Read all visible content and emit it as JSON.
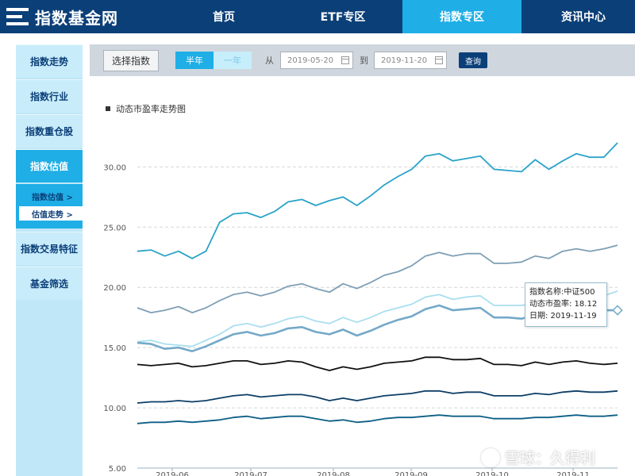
{
  "site": {
    "logo_text": "指数基金网"
  },
  "nav": [
    {
      "label": "首页",
      "active": false
    },
    {
      "label": "ETF专区",
      "active": false
    },
    {
      "label": "指数专区",
      "active": true
    },
    {
      "label": "资讯中心",
      "active": false
    }
  ],
  "sidebar": {
    "items": [
      {
        "label": "指数走势"
      },
      {
        "label": "指数行业"
      },
      {
        "label": "指数重仓股"
      },
      {
        "label": "指数估值"
      }
    ],
    "sub_items": [
      {
        "label": "指数估值 >"
      },
      {
        "label": "估值走势 >"
      }
    ],
    "items_after": [
      {
        "label": "指数交易特征"
      },
      {
        "label": "基金筛选"
      }
    ]
  },
  "filter": {
    "select_index_label": "选择指数",
    "range_options": [
      "半年",
      "一年"
    ],
    "active_range": "半年",
    "from_label": "从",
    "from_date": "2019-05-20",
    "to_label": "到",
    "to_date": "2019-11-20",
    "query_label": "查询"
  },
  "chart_title": "动态市盈率走势图",
  "tooltip": {
    "name": "指数名称:中证500",
    "pe": "动态市盈率: 18.12",
    "date": "日期: 2019-11-19"
  },
  "watermark": "雪球：久得利",
  "colors": {
    "nav_bg": "#0b3f78",
    "accent": "#1faee6",
    "series": [
      "#2aa3c8",
      "#7f9fb5",
      "#a9def0",
      "#74a9c8",
      "#111111",
      "#0d3e66",
      "#0d5f86"
    ]
  },
  "chart_data": {
    "type": "line",
    "title": "动态市盈率走势图",
    "x_start": "2019-05-20",
    "x_end": "2019-11-19",
    "x_tick_labels": [
      "2019-06",
      "2019-07",
      "2019-08",
      "2019-09",
      "2019-10",
      "2019-11"
    ],
    "y_tick_labels": [
      "5.00",
      "10.00",
      "15.00",
      "20.00",
      "25.00",
      "30.00"
    ],
    "ylim": [
      5,
      32
    ],
    "grid": true,
    "series": [
      {
        "values": [
          23.0,
          23.1,
          22.6,
          23.0,
          22.4,
          23.0,
          25.4,
          26.1,
          26.2,
          25.8,
          26.3,
          27.1,
          27.3,
          26.8,
          27.2,
          27.5,
          26.8,
          27.6,
          28.5,
          29.2,
          29.8,
          30.9,
          31.1,
          30.5,
          30.7,
          30.9,
          29.8,
          29.7,
          29.6,
          30.6,
          29.8,
          30.5,
          31.1,
          30.8,
          30.8,
          32.0
        ]
      },
      {
        "values": [
          18.3,
          17.9,
          18.1,
          18.4,
          17.9,
          18.3,
          18.9,
          19.4,
          19.6,
          19.3,
          19.6,
          20.1,
          20.3,
          19.9,
          19.6,
          20.3,
          19.9,
          20.4,
          21.0,
          21.3,
          21.8,
          22.6,
          22.9,
          22.6,
          22.8,
          22.8,
          22.0,
          22.0,
          22.1,
          22.6,
          22.4,
          23.0,
          23.2,
          23.0,
          23.2,
          23.5
        ]
      },
      {
        "values": [
          15.5,
          15.6,
          15.3,
          15.2,
          15.1,
          15.6,
          16.1,
          16.8,
          17.0,
          16.7,
          17.0,
          17.4,
          17.6,
          17.2,
          17.0,
          17.5,
          17.1,
          17.5,
          18.0,
          18.3,
          18.6,
          19.2,
          19.4,
          19.0,
          19.2,
          19.3,
          18.5,
          18.5,
          18.5,
          18.7,
          18.6,
          19.0,
          19.2,
          19.0,
          19.3,
          19.7
        ]
      },
      {
        "values": [
          15.4,
          15.3,
          14.9,
          15.0,
          14.7,
          15.1,
          15.6,
          16.1,
          16.3,
          16.0,
          16.2,
          16.6,
          16.7,
          16.3,
          16.1,
          16.5,
          16.0,
          16.4,
          16.9,
          17.3,
          17.6,
          18.2,
          18.5,
          18.1,
          18.2,
          18.3,
          17.5,
          17.5,
          17.4,
          17.7,
          17.6,
          18.0,
          18.2,
          18.0,
          18.1,
          18.1
        ]
      },
      {
        "values": [
          13.6,
          13.5,
          13.6,
          13.7,
          13.4,
          13.5,
          13.7,
          13.9,
          13.9,
          13.6,
          13.7,
          13.9,
          13.8,
          13.4,
          13.1,
          13.4,
          13.2,
          13.4,
          13.7,
          13.8,
          13.9,
          14.2,
          14.2,
          14.0,
          14.0,
          14.1,
          13.6,
          13.6,
          13.5,
          13.8,
          13.6,
          13.8,
          13.9,
          13.7,
          13.6,
          13.7
        ]
      },
      {
        "values": [
          10.4,
          10.5,
          10.5,
          10.6,
          10.5,
          10.6,
          10.8,
          11.0,
          11.1,
          10.9,
          11.0,
          11.1,
          11.1,
          10.9,
          10.6,
          10.8,
          10.6,
          10.8,
          11.0,
          11.1,
          11.2,
          11.4,
          11.4,
          11.2,
          11.3,
          11.3,
          11.0,
          11.0,
          11.0,
          11.2,
          11.1,
          11.3,
          11.4,
          11.3,
          11.3,
          11.4
        ]
      },
      {
        "values": [
          8.7,
          8.8,
          8.8,
          8.9,
          8.8,
          8.9,
          9.0,
          9.2,
          9.3,
          9.1,
          9.2,
          9.3,
          9.3,
          9.1,
          8.9,
          9.0,
          8.8,
          8.9,
          9.1,
          9.2,
          9.2,
          9.3,
          9.4,
          9.3,
          9.3,
          9.3,
          9.1,
          9.1,
          9.1,
          9.2,
          9.2,
          9.3,
          9.4,
          9.3,
          9.3,
          9.4
        ]
      }
    ]
  }
}
